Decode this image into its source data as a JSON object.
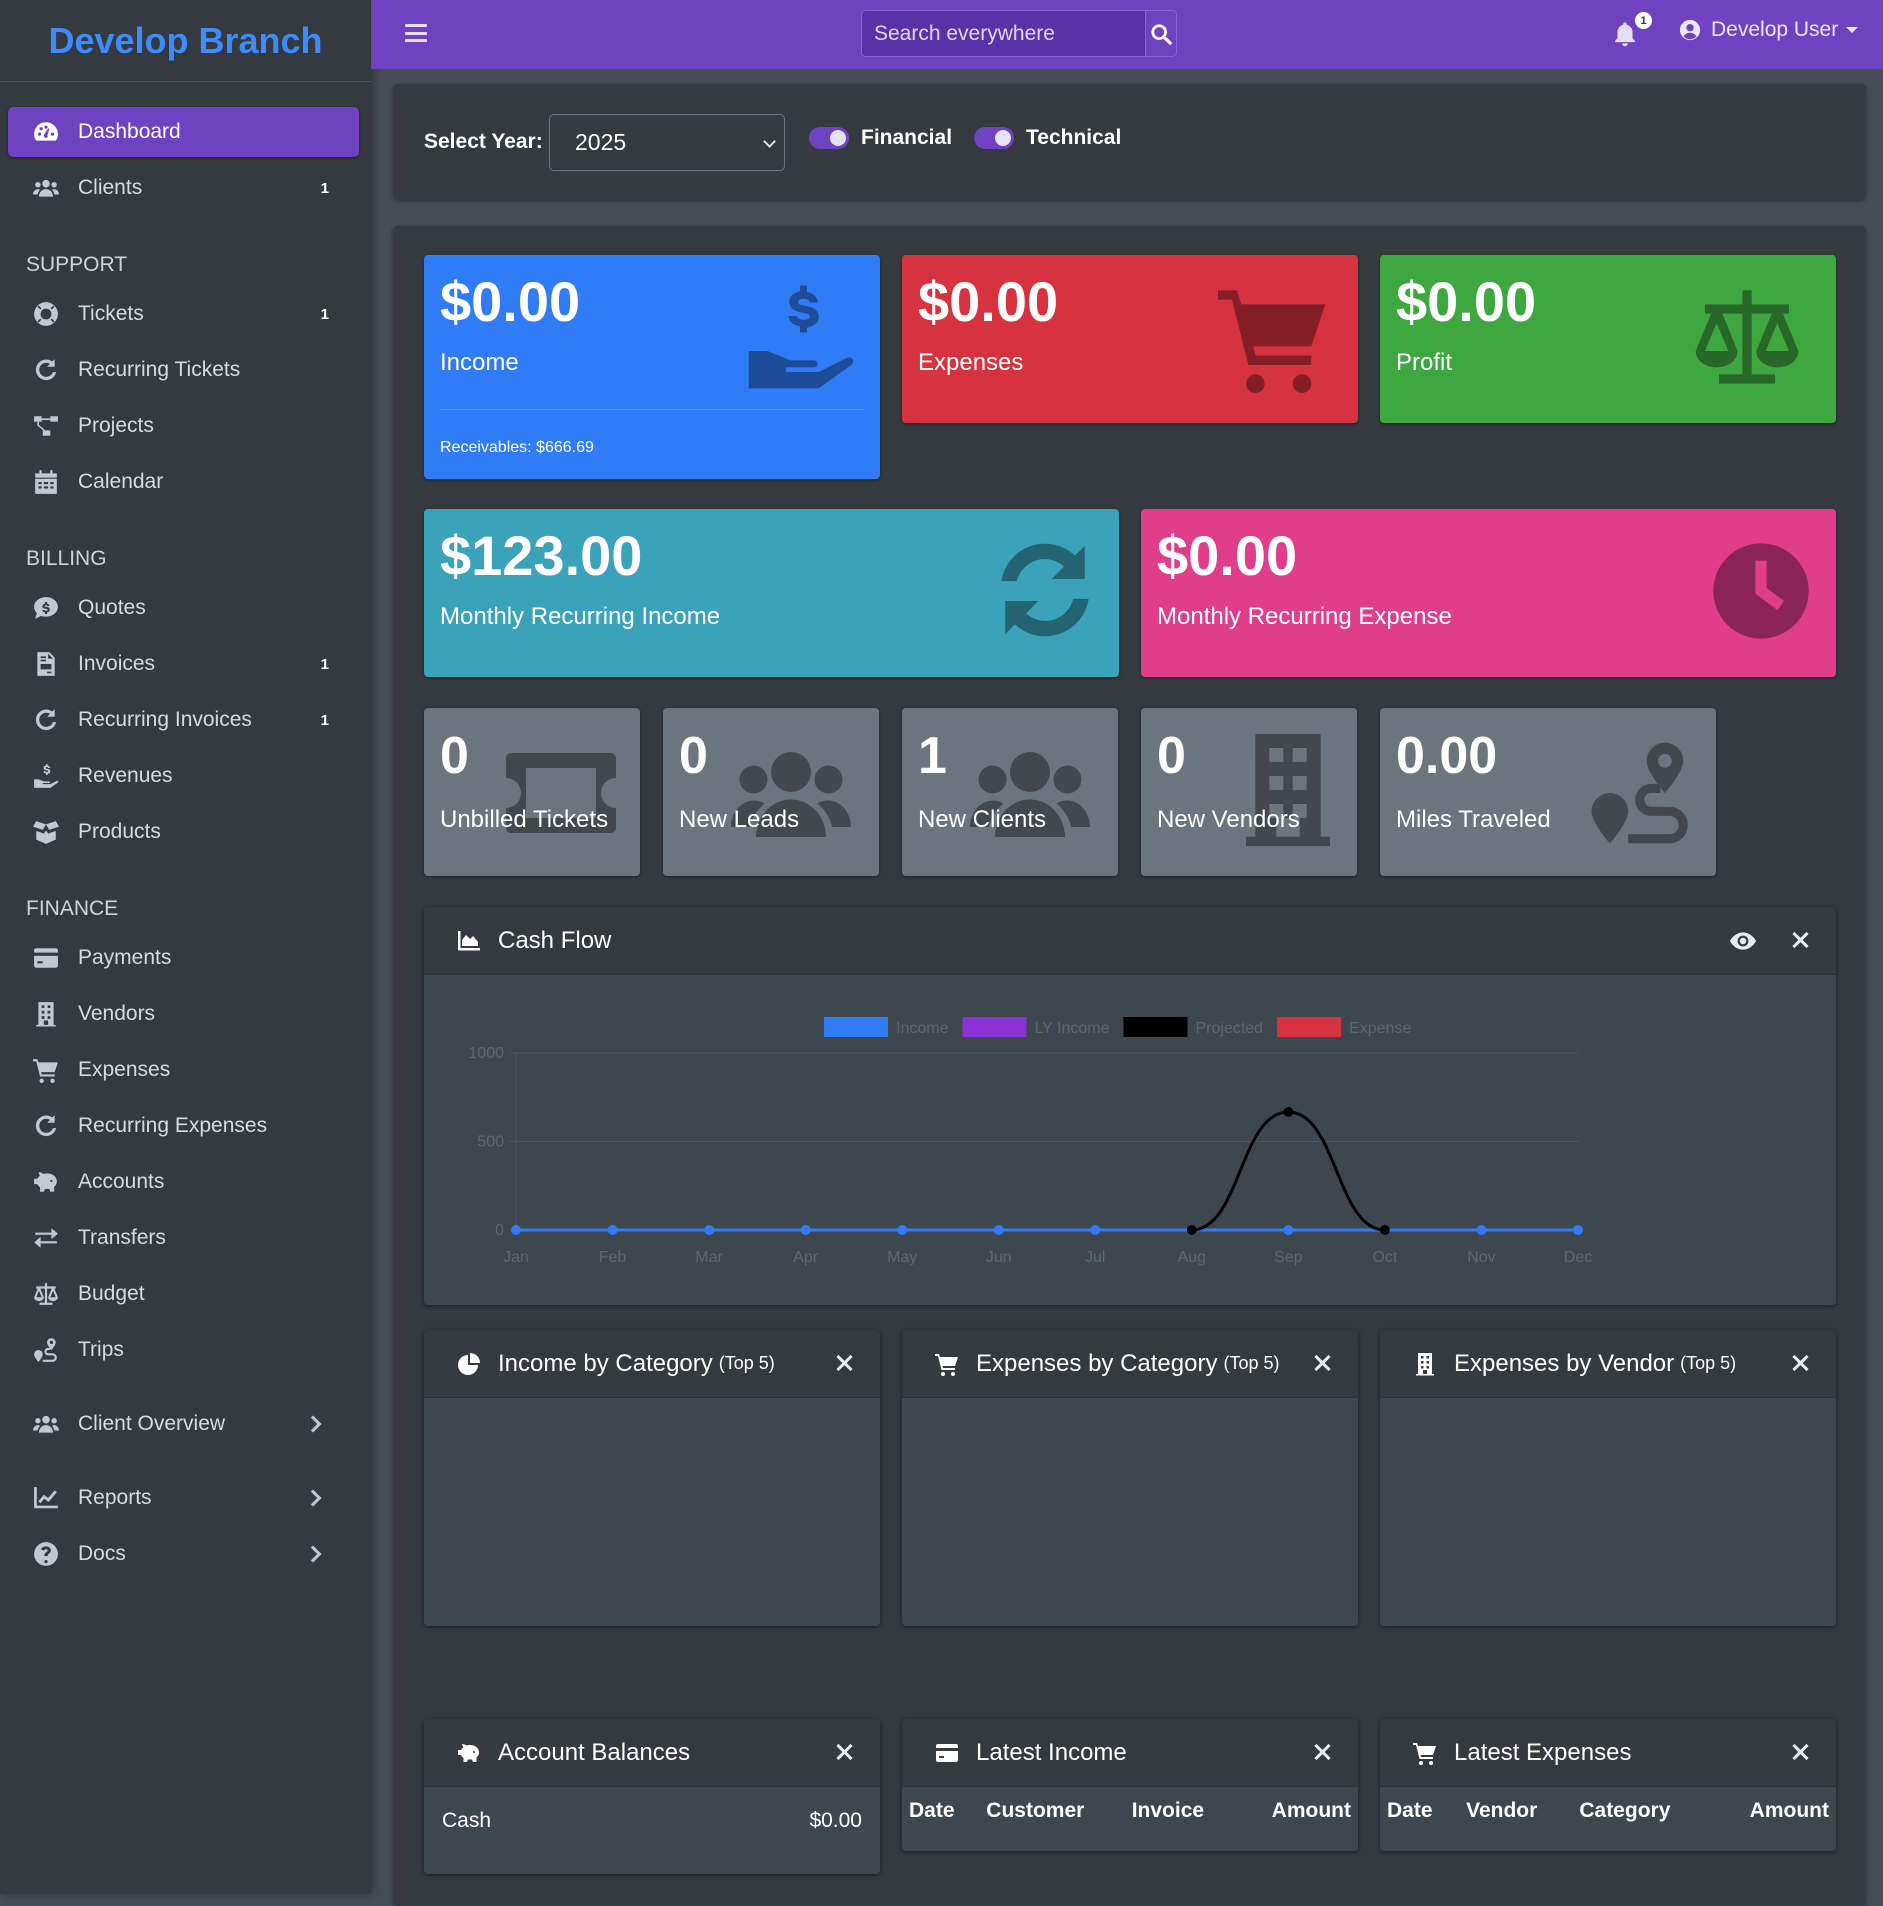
{
  "brand": "Develop Branch",
  "header": {
    "search_placeholder": "Search everywhere",
    "notification_count": "1",
    "user_name": "Develop User"
  },
  "sidebar": {
    "dashboard": "Dashboard",
    "clients": {
      "label": "Clients",
      "badge": "1"
    },
    "support_header": "SUPPORT",
    "tickets": {
      "label": "Tickets",
      "badge": "1"
    },
    "recurring_tickets": "Recurring Tickets",
    "projects": "Projects",
    "calendar": "Calendar",
    "billing_header": "BILLING",
    "quotes": "Quotes",
    "invoices": {
      "label": "Invoices",
      "badge": "1"
    },
    "recurring_invoices": {
      "label": "Recurring Invoices",
      "badge": "1"
    },
    "revenues": "Revenues",
    "products": "Products",
    "finance_header": "FINANCE",
    "payments": "Payments",
    "vendors": "Vendors",
    "expenses": "Expenses",
    "recurring_expenses": "Recurring Expenses",
    "accounts": "Accounts",
    "transfers": "Transfers",
    "budget": "Budget",
    "trips": "Trips",
    "client_overview": "Client Overview",
    "reports": "Reports",
    "docs": "Docs"
  },
  "filters": {
    "year_label": "Select Year:",
    "year_value": "2025",
    "financial_label": "Financial",
    "technical_label": "Technical"
  },
  "stats": {
    "income": {
      "value": "$0.00",
      "label": "Income",
      "footer": "Receivables: $666.69",
      "color": "#2f7cf6"
    },
    "expenses": {
      "value": "$0.00",
      "label": "Expenses",
      "color": "#d6323f"
    },
    "profit": {
      "value": "$0.00",
      "label": "Profit",
      "color": "#3fa73f"
    },
    "mri": {
      "value": "$123.00",
      "label": "Monthly Recurring Income",
      "color": "#3aa2b9"
    },
    "mre": {
      "value": "$0.00",
      "label": "Monthly Recurring Expense",
      "color": "#e03d8a"
    },
    "unbilled_tickets": {
      "value": "0",
      "label": "Unbilled Tickets"
    },
    "new_leads": {
      "value": "0",
      "label": "New Leads"
    },
    "new_clients": {
      "value": "1",
      "label": "New Clients"
    },
    "new_vendors": {
      "value": "0",
      "label": "New Vendors"
    },
    "miles_traveled": {
      "value": "0.00",
      "label": "Miles Traveled"
    }
  },
  "cash_flow": {
    "title": "Cash Flow"
  },
  "chart_data": {
    "type": "line",
    "title": "",
    "categories": [
      "Jan",
      "Feb",
      "Mar",
      "Apr",
      "May",
      "Jun",
      "Jul",
      "Aug",
      "Sep",
      "Oct",
      "Nov",
      "Dec"
    ],
    "series": [
      {
        "name": "Income",
        "color": "#2f7cf6",
        "values": [
          0,
          0,
          0,
          0,
          0,
          0,
          0,
          0,
          0,
          0,
          0,
          0
        ]
      },
      {
        "name": "LY Income",
        "color": "#8b32d6",
        "values": [
          0,
          0,
          0,
          0,
          0,
          0,
          0,
          0,
          0,
          0,
          0,
          0
        ]
      },
      {
        "name": "Projected",
        "color": "#000000",
        "values": [
          null,
          null,
          null,
          null,
          null,
          null,
          null,
          0,
          666.69,
          0,
          null,
          null
        ]
      },
      {
        "name": "Expense",
        "color": "#d6323f",
        "values": [
          0,
          0,
          0,
          0,
          0,
          0,
          0,
          0,
          0,
          0,
          0,
          0
        ]
      }
    ],
    "yticks": [
      "0",
      "500",
      "1000"
    ],
    "ylim": [
      0,
      1000
    ],
    "grid": true,
    "legend": "top"
  },
  "income_by_category": {
    "title": "Income by Category",
    "suffix": "(Top 5)"
  },
  "expenses_by_category": {
    "title": "Expenses by Category",
    "suffix": "(Top 5)"
  },
  "expenses_by_vendor": {
    "title": "Expenses by Vendor",
    "suffix": "(Top 5)"
  },
  "account_balances": {
    "title": "Account Balances",
    "rows": [
      {
        "name": "Cash",
        "amount": "$0.00"
      }
    ]
  },
  "latest_income": {
    "title": "Latest Income",
    "columns": [
      "Date",
      "Customer",
      "Invoice",
      "Amount"
    ]
  },
  "latest_expenses": {
    "title": "Latest Expenses",
    "columns": [
      "Date",
      "Vendor",
      "Category",
      "Amount"
    ]
  }
}
